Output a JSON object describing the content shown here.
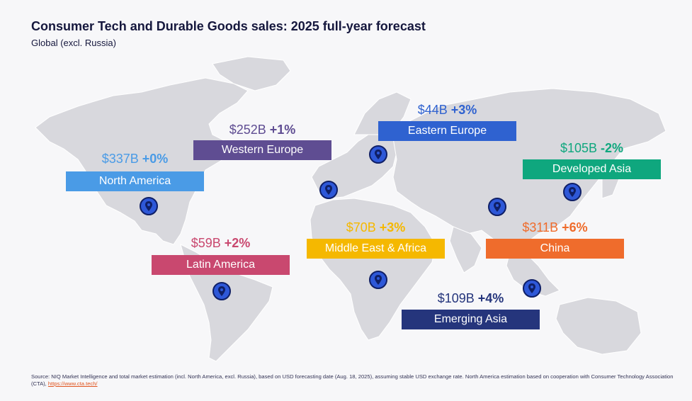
{
  "header": {
    "title": "Consumer Tech and Durable Goods sales: 2025 full-year forecast",
    "subtitle": "Global (excl. Russia)"
  },
  "regions": {
    "north_america": {
      "label": "North America",
      "value": "$337B",
      "change": "+0%",
      "color": "#4a9be6",
      "value_color": "#4a9be6"
    },
    "western_europe": {
      "label": "Western Europe",
      "value": "$252B",
      "change": "+1%",
      "color": "#5f4d92",
      "value_color": "#5f4d92"
    },
    "eastern_europe": {
      "label": "Eastern Europe",
      "value": "$44B",
      "change": "+3%",
      "color": "#2f62d0",
      "value_color": "#2f62d0"
    },
    "developed_asia": {
      "label": "Developed Asia",
      "value": "$105B",
      "change": "-2%",
      "color": "#0fa77e",
      "value_color": "#0fa77e"
    },
    "latin_america": {
      "label": "Latin America",
      "value": "$59B",
      "change": "+2%",
      "color": "#c9486f",
      "value_color": "#c9486f"
    },
    "middle_east_africa": {
      "label": "Middle East & Africa",
      "value": "$70B",
      "change": "+3%",
      "color": "#f5b800",
      "value_color": "#f5b800"
    },
    "china": {
      "label": "China",
      "value": "$311B",
      "change": "+6%",
      "color": "#ef6c2c",
      "value_color": "#ef6c2c"
    },
    "emerging_asia": {
      "label": "Emerging Asia",
      "value": "$109B",
      "change": "+4%",
      "color": "#25357c",
      "value_color": "#25357c"
    }
  },
  "icons": {
    "pin": "map-pin-icon"
  },
  "footer": {
    "text": "Source: NIQ Market Intelligence and total market estimation (incl. North America, excl. Russia), based on USD forecasting date (Aug. 18, 2025), assuming stable USD exchange rate. North America estimation based on cooperation with Consumer Technology Association (CTA), ",
    "link": "https://www.cta.tech/"
  }
}
